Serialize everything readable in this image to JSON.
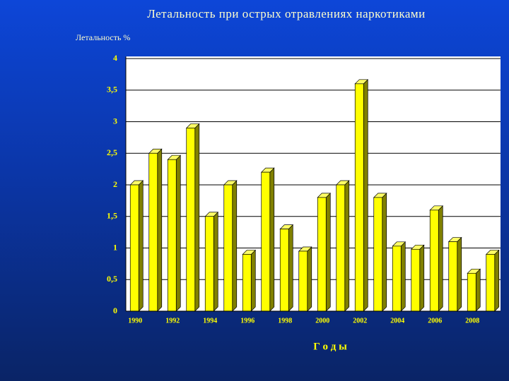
{
  "chart_data": {
    "type": "bar3d",
    "title": "Летальность при острых отравлениях наркотиками",
    "y_label": "Летальность %",
    "x_label": "Г о д ы",
    "categories": [
      "1990",
      null,
      "1992",
      null,
      "1994",
      null,
      "1996",
      null,
      "1998",
      null,
      "2000",
      null,
      "2002",
      null,
      "2004",
      null,
      "2006",
      null,
      "2008",
      null
    ],
    "values": [
      2.0,
      2.5,
      2.4,
      2.9,
      1.5,
      2.0,
      0.9,
      2.2,
      1.3,
      0.95,
      1.8,
      2.0,
      3.6,
      1.8,
      1.03,
      0.98,
      1.6,
      1.1,
      0.6,
      0.9
    ],
    "color": "#ffff00",
    "ylim": [
      0,
      4
    ],
    "yticks": [
      0,
      {
        "value": 0.5,
        "label": "0,5"
      },
      1,
      {
        "value": 1.5,
        "label": "1,5"
      },
      2,
      {
        "value": 2.5,
        "label": "2,5"
      },
      3,
      {
        "value": 3.5,
        "label": "3,5"
      },
      4
    ],
    "grid": true
  }
}
